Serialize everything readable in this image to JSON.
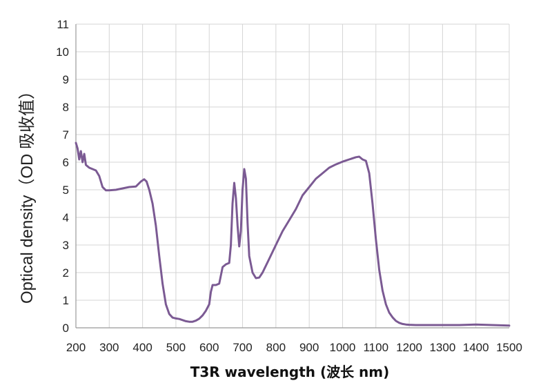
{
  "chart_data": {
    "type": "line",
    "title": "",
    "xlabel": "T3R wavelength (波长 nm)",
    "ylabel": "Optical density（OD 吸收值）",
    "xlim": [
      200,
      1500
    ],
    "ylim": [
      0,
      11
    ],
    "x_ticks": [
      200,
      300,
      400,
      500,
      600,
      700,
      800,
      900,
      1000,
      1100,
      1200,
      1300,
      1400,
      1500
    ],
    "y_ticks": [
      0,
      1,
      2,
      3,
      4,
      5,
      6,
      7,
      8,
      9,
      10,
      11
    ],
    "grid": true,
    "legend": "none",
    "colors": {
      "line": "#7b5a93",
      "grid": "#d4d4d4",
      "axis": "#999999"
    },
    "series": [
      {
        "x": [
          200,
          205,
          210,
          215,
          220,
          225,
          230,
          240,
          250,
          260,
          270,
          280,
          290,
          300,
          320,
          340,
          360,
          380,
          395,
          405,
          412,
          420,
          430,
          440,
          450,
          460,
          470,
          480,
          490,
          500,
          510,
          520,
          530,
          540,
          550,
          560,
          570,
          580,
          590,
          600,
          605,
          610,
          620,
          630,
          640,
          650,
          660,
          665,
          670,
          675,
          680,
          685,
          690,
          695,
          700,
          705,
          710,
          715,
          720,
          730,
          740,
          750,
          760,
          780,
          800,
          820,
          840,
          860,
          880,
          900,
          920,
          940,
          960,
          980,
          1000,
          1020,
          1040,
          1050,
          1060,
          1070,
          1080,
          1090,
          1100,
          1110,
          1120,
          1130,
          1140,
          1150,
          1160,
          1170,
          1180,
          1190,
          1200,
          1220,
          1240,
          1260,
          1280,
          1300,
          1350,
          1400,
          1450,
          1500
        ],
        "y": [
          6.7,
          6.5,
          6.1,
          6.4,
          6.0,
          6.3,
          5.9,
          5.8,
          5.75,
          5.7,
          5.5,
          5.1,
          4.98,
          4.98,
          5.0,
          5.05,
          5.1,
          5.12,
          5.3,
          5.38,
          5.3,
          5.0,
          4.5,
          3.7,
          2.6,
          1.6,
          0.85,
          0.5,
          0.37,
          0.34,
          0.32,
          0.28,
          0.24,
          0.22,
          0.22,
          0.26,
          0.33,
          0.45,
          0.62,
          0.85,
          1.3,
          1.55,
          1.55,
          1.6,
          2.2,
          2.3,
          2.35,
          3.0,
          4.5,
          5.25,
          4.7,
          3.7,
          2.95,
          3.5,
          5.0,
          5.75,
          5.4,
          3.8,
          2.6,
          2.0,
          1.8,
          1.82,
          2.0,
          2.5,
          3.0,
          3.5,
          3.9,
          4.3,
          4.8,
          5.1,
          5.4,
          5.6,
          5.8,
          5.92,
          6.02,
          6.1,
          6.18,
          6.2,
          6.1,
          6.05,
          5.6,
          4.5,
          3.2,
          2.1,
          1.35,
          0.85,
          0.55,
          0.38,
          0.25,
          0.18,
          0.14,
          0.12,
          0.11,
          0.1,
          0.1,
          0.1,
          0.1,
          0.1,
          0.1,
          0.12,
          0.1,
          0.08
        ]
      }
    ]
  }
}
